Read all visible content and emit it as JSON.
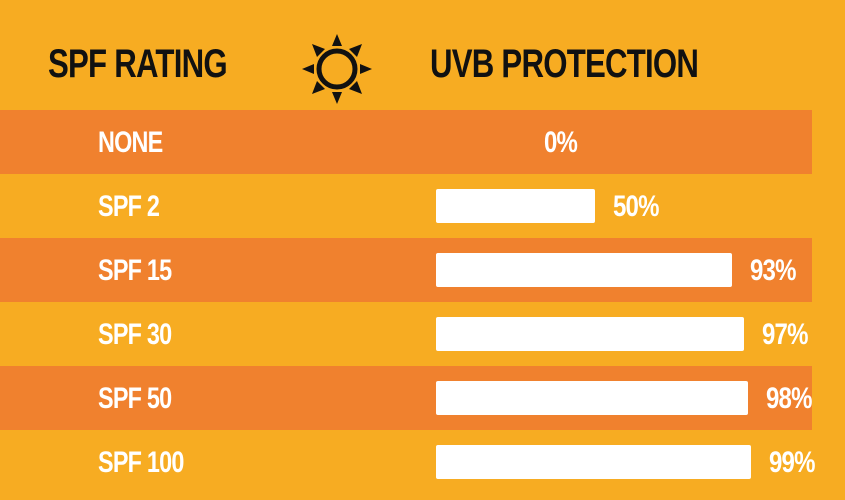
{
  "header": {
    "left_label": "SPF RATING",
    "right_label": "UVB PROTECTION",
    "icon": "sun-icon"
  },
  "colors": {
    "background": "#f7ac22",
    "stripe": "#f0812e",
    "bar": "#ffffff",
    "text_dark": "#111111"
  },
  "chart_data": {
    "type": "bar",
    "orientation": "horizontal",
    "categories": [
      "NONE",
      "SPF 2",
      "SPF 15",
      "SPF 30",
      "SPF 50",
      "SPF 100"
    ],
    "values": [
      0,
      50,
      93,
      97,
      98,
      99
    ],
    "value_labels": [
      "0%",
      "50%",
      "93%",
      "97%",
      "98%",
      "99%"
    ],
    "xlabel": "UVB PROTECTION",
    "ylabel": "SPF RATING",
    "unit": "%",
    "xlim": [
      0,
      100
    ],
    "grid": false,
    "legend": "none"
  }
}
